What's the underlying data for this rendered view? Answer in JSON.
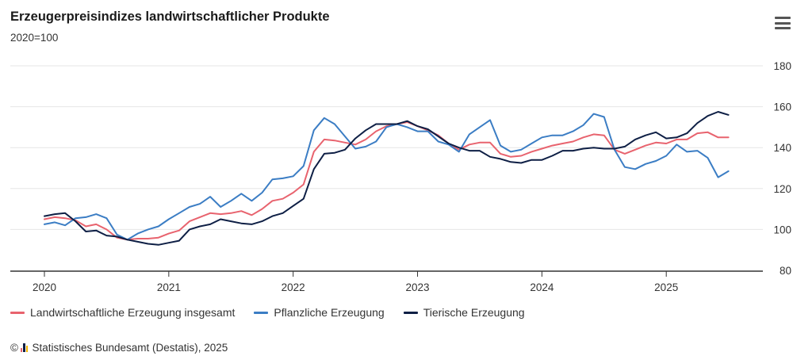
{
  "header": {
    "title": "Erzeugerpreisindizes landwirtschaftlicher Produkte",
    "subtitle": "2020=100",
    "menu_icon": "hamburger-menu-icon"
  },
  "footer": {
    "copyright_symbol": "©",
    "source": "Statistisches Bundesamt (Destatis), 2025"
  },
  "chart_data": {
    "type": "line",
    "title": "Erzeugerpreisindizes landwirtschaftlicher Produkte",
    "subtitle": "2020=100",
    "x_start": "2020-01",
    "x_tick_labels": [
      "2020",
      "2021",
      "2022",
      "2023",
      "2024",
      "2025"
    ],
    "y_tick_labels": [
      "80",
      "100",
      "120",
      "140",
      "160",
      "180"
    ],
    "ylim": [
      80,
      180
    ],
    "y_axis_side": "right",
    "grid": "horizontal",
    "legend_position": "bottom-left",
    "series": [
      {
        "name": "Landwirtschaftliche Erzeugung insgesamt",
        "color": "#e8636e",
        "values": [
          105,
          106,
          105.5,
          104.5,
          101.5,
          102.5,
          100,
          96,
          95,
          95.5,
          95.5,
          96,
          98,
          99.5,
          104,
          106,
          108,
          107.5,
          108,
          109,
          107,
          110,
          114,
          115,
          118,
          122,
          138,
          144,
          143.5,
          142.5,
          141.5,
          144,
          148,
          150.5,
          151.5,
          152.5,
          150.5,
          148.5,
          146,
          142,
          139,
          141.5,
          142.5,
          142.5,
          137,
          135.5,
          136,
          138,
          139.5,
          141,
          142,
          143,
          145,
          146.5,
          146,
          139,
          137,
          139,
          141,
          142.5,
          142,
          144,
          144,
          147,
          147.5,
          145,
          145
        ]
      },
      {
        "name": "Pflanzliche Erzeugung",
        "color": "#3b7dc4",
        "values": [
          102.5,
          103.5,
          102,
          105.5,
          106,
          107.5,
          105.5,
          97.5,
          95,
          98,
          100,
          101.5,
          105,
          108,
          111,
          112.5,
          116,
          111,
          114,
          117.5,
          114,
          118,
          124.5,
          125,
          126,
          131,
          148.5,
          154.5,
          151.5,
          145.5,
          139.5,
          140.5,
          143,
          150,
          151.5,
          150,
          148,
          148,
          143,
          141.5,
          138,
          146.5,
          150,
          153.5,
          141,
          138,
          139,
          142,
          145,
          146,
          146,
          148,
          151,
          156.5,
          155,
          139,
          130.5,
          129.5,
          132,
          133.5,
          136,
          141.5,
          138,
          138.5,
          135,
          125.5,
          128.5
        ]
      },
      {
        "name": "Tierische Erzeugung",
        "color": "#0e1f45",
        "values": [
          106.5,
          107.5,
          108,
          104,
          99,
          99.5,
          97,
          96.5,
          95,
          94,
          93,
          92.5,
          93.5,
          94.5,
          100,
          101.5,
          102.5,
          105,
          104,
          103,
          102.5,
          104,
          106.5,
          108,
          111.5,
          115,
          129.5,
          137,
          137.5,
          139,
          144.5,
          148.5,
          151.5,
          151.5,
          151.5,
          153,
          150.5,
          149,
          145.5,
          142,
          140,
          138.5,
          138.5,
          135.5,
          134.5,
          133,
          132.5,
          134,
          134,
          136,
          138.5,
          138.5,
          139.5,
          140,
          139.5,
          139.5,
          140.5,
          144,
          146,
          147.5,
          144.5,
          145,
          147,
          152,
          155.5,
          157.5,
          156
        ]
      }
    ]
  }
}
